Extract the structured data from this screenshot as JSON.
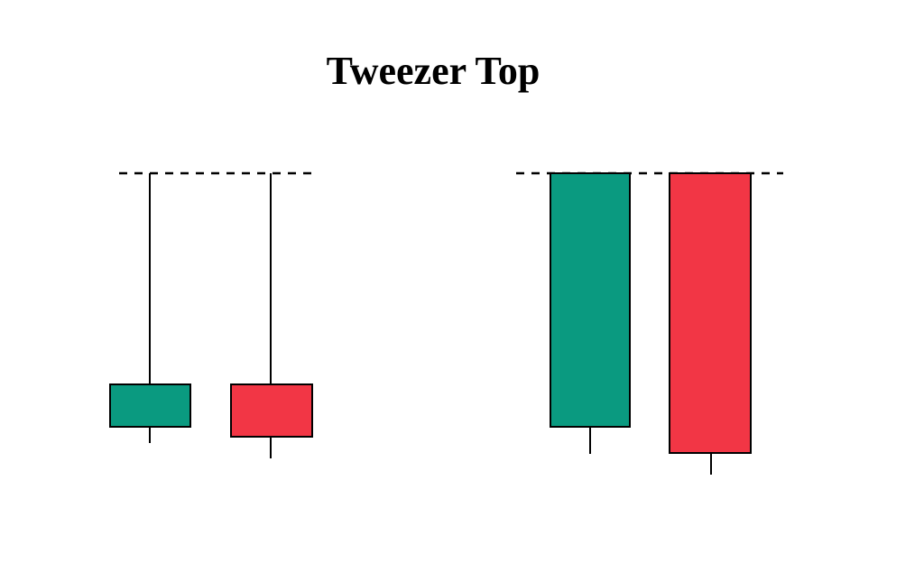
{
  "title": "Tweezer Top"
}
